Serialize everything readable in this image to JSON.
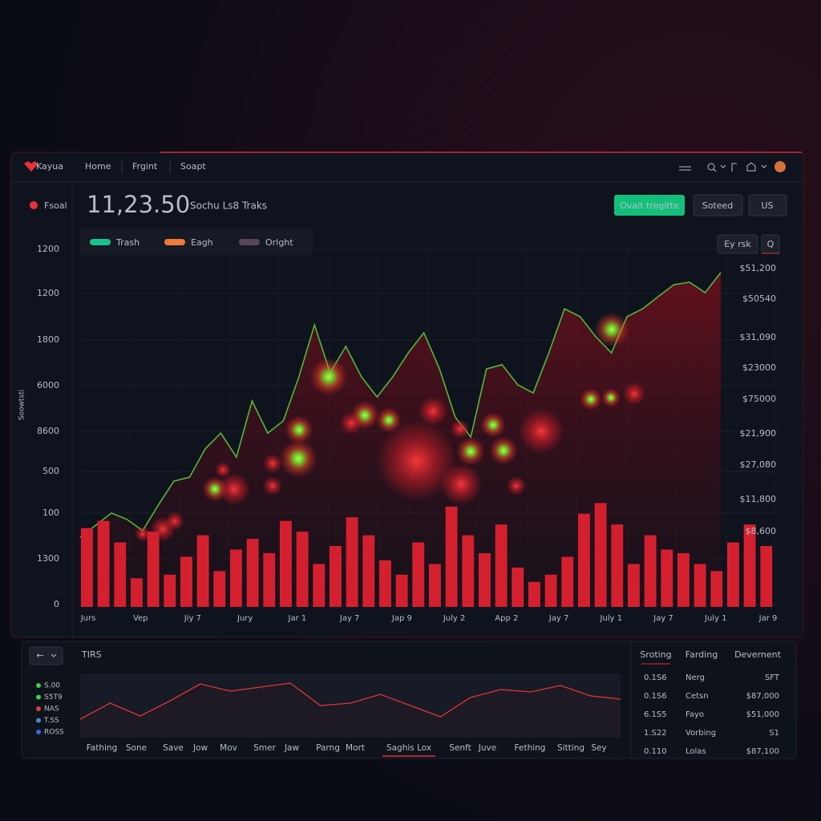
{
  "header": {
    "brand": "Kayua",
    "nav": [
      "Home",
      "Frgint",
      "Soapt"
    ]
  },
  "sidebar": {
    "label": "Fsoal"
  },
  "summary": {
    "value": "11,23.50",
    "caption": "Sochu Ls8 Traks"
  },
  "buttons": [
    "Ovalt tregitte",
    "Soteed",
    "US"
  ],
  "chart_tools": [
    "Ey rsk",
    "Q"
  ],
  "chart_data": [
    {
      "type": "bar",
      "y_axis_title": "Soowtsti",
      "y_labels": [
        "1200",
        "1200",
        "1800",
        "6000",
        "8600",
        "500",
        "100",
        "1300",
        "0"
      ],
      "y2_labels": [
        "$51,200",
        "$50540",
        "$31,090",
        "$23000",
        "$75000",
        "$21,900",
        "$27,080",
        "$11,800",
        "$8,600"
      ],
      "x_labels": [
        "Jurs",
        "Vep",
        "Jiy 7",
        "Jury",
        "Jar 1",
        "Jay 7",
        "Jap 9",
        "July 2",
        "App 2",
        "Jay 7",
        "July 1",
        "Jay 7",
        "July 1",
        "Jar 9"
      ],
      "legend": [
        {
          "name": "Trash",
          "color": "#18c48c"
        },
        {
          "name": "Eagh",
          "color": "#f07a3a"
        },
        {
          "name": "Orlght",
          "color": "#5a4656"
        }
      ],
      "ylim": [
        0,
        100
      ],
      "series": [
        {
          "type": "bar",
          "color": "#d4202e",
          "values": [
            22,
            24,
            18,
            8,
            21,
            9,
            14,
            20,
            10,
            16,
            19,
            15,
            24,
            21,
            12,
            17,
            25,
            20,
            13,
            9,
            18,
            12,
            28,
            20,
            15,
            23,
            11,
            7,
            9,
            14,
            26,
            29,
            23,
            12,
            20,
            16,
            15,
            12,
            10,
            18,
            23,
            17
          ]
        },
        {
          "type": "line",
          "color": "#52b83a",
          "values": [
            19.5,
            22.8,
            26.2,
            24.4,
            21.3,
            28.4,
            35.1,
            36.2,
            44.1,
            48.5,
            41.8,
            57.5,
            48.5,
            51.9,
            64.2,
            78.7,
            65.3,
            72.7,
            64.2,
            58.6,
            64.2,
            70.9,
            76.5,
            66.4,
            53.0,
            47.4,
            66.4,
            67.6,
            62.0,
            59.7,
            70.9,
            83.2,
            81.0,
            75.4,
            70.9,
            81.0,
            83.2,
            86.6,
            89.9,
            90.6,
            87.7,
            93.3
          ]
        }
      ]
    },
    {
      "type": "line",
      "title": "TIRS",
      "legend": [
        {
          "label": "S.00",
          "color": "#3ecf4a"
        },
        {
          "label": "S5T9",
          "color": "#3ecf4a"
        },
        {
          "label": "NAS",
          "color": "#e23a3a"
        },
        {
          "label": "T.SS",
          "color": "#4a86c8"
        },
        {
          "label": "ROSS",
          "color": "#3a6ad8"
        }
      ],
      "x_labels": [
        "Fathing",
        "Sone",
        "Save",
        "Jow",
        "Mov",
        "Smer",
        "Jaw",
        "Parng",
        "Mort",
        "Saghis Lox",
        "Senft",
        "Juve",
        "Fething",
        "Sitting",
        "Sey"
      ],
      "active_index": 9,
      "ylim": [
        0,
        100
      ],
      "color": "#e03535",
      "values": [
        28.8,
        53.8,
        33.8,
        57.5,
        83.8,
        72.5,
        78.8,
        85,
        50,
        53.8,
        67.5,
        50,
        32.5,
        62.5,
        75,
        71.3,
        81.3,
        65,
        60
      ]
    }
  ],
  "table": {
    "header": [
      "Sroting",
      "Farding",
      "Devernent"
    ],
    "rows": [
      [
        "0.1S6",
        "Nerg",
        "SFT"
      ],
      [
        "0.1S6",
        "Cetsn",
        "$87,000"
      ],
      [
        "6.1S5",
        "Fayo",
        "$51,000"
      ],
      [
        "1.S22",
        "Vorbing",
        "S1"
      ],
      [
        "0.110",
        "Lolas",
        "$87,100"
      ]
    ]
  }
}
